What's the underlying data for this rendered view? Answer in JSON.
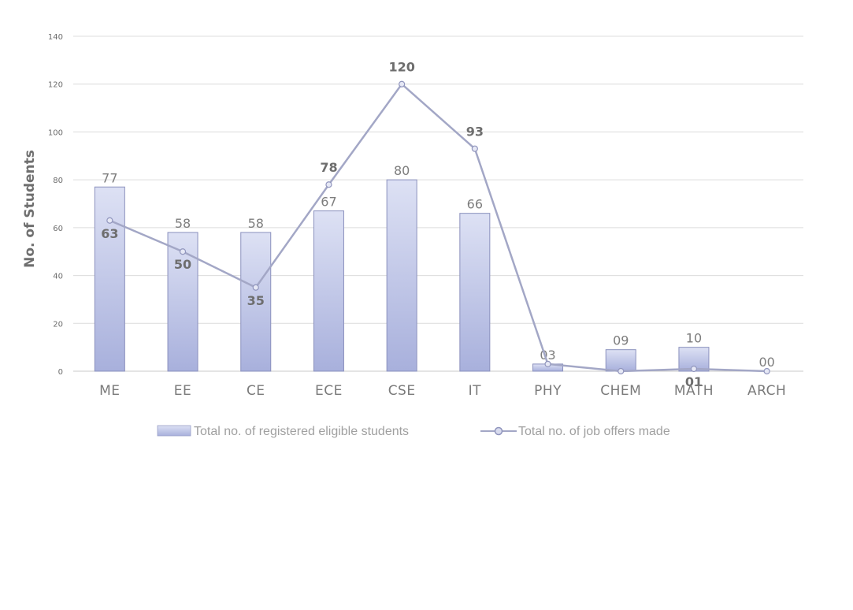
{
  "chart_data": {
    "type": "bar",
    "categories": [
      "ME",
      "EE",
      "CE",
      "ECE",
      "CSE",
      "IT",
      "PHY",
      "CHEM",
      "MATH",
      "ARCH"
    ],
    "ylabel": "No. of Students",
    "xlabel": "",
    "title": "",
    "ylim": [
      0,
      140
    ],
    "yticks": [
      0,
      20,
      40,
      60,
      80,
      100,
      120,
      140
    ],
    "grid": true,
    "legend_position": "bottom",
    "series": [
      {
        "name": "Total no. of registered eligible students",
        "type": "bar",
        "values": [
          77,
          58,
          58,
          67,
          80,
          66,
          3,
          9,
          10,
          0
        ],
        "labels": [
          "77",
          "58",
          "58",
          "67",
          "80",
          "66",
          "03",
          "09",
          "10",
          "00"
        ],
        "color": "#b9bfe3"
      },
      {
        "name": "Total no. of job offers made",
        "type": "line",
        "values": [
          63,
          50,
          35,
          78,
          120,
          93,
          3,
          0,
          1,
          0
        ],
        "labels": [
          "63",
          "50",
          "35",
          "78",
          "120",
          "93",
          "",
          "",
          "01",
          ""
        ],
        "color": "#a3a7c6"
      }
    ]
  }
}
